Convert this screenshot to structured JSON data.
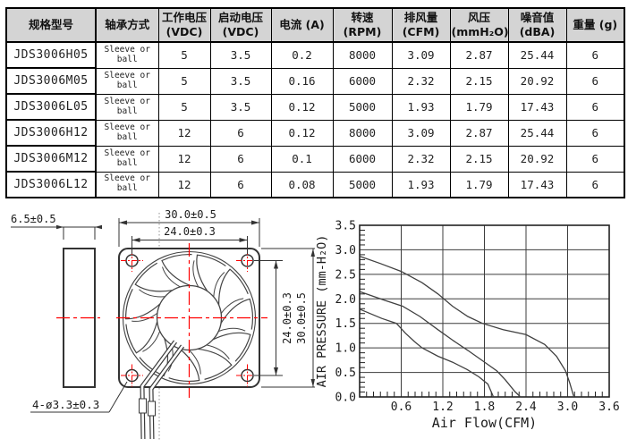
{
  "colors": {
    "accent_red": "#ff0000",
    "line_dark": "#3a3a3a",
    "header_bg": "#d4d4d4",
    "table_border": "#000000",
    "curve": "#404040"
  },
  "spec_table": {
    "headers": [
      "规格型号",
      "轴承方式",
      "工作电压\n(VDC)",
      "启动电压\n(VDC)",
      "电流 (A)",
      "转速(RPM)",
      "排风量\n(CFM)",
      "风压\n(mmH₂O)",
      "噪音值\n(dBA)",
      "重量 (g)"
    ],
    "rows": [
      [
        "JDS3006H05",
        "Sleeve or\nball",
        "5",
        "3.5",
        "0.2",
        "8000",
        "3.09",
        "2.87",
        "25.44",
        "6"
      ],
      [
        "JDS3006M05",
        "Sleeve or\nball",
        "5",
        "3.5",
        "0.16",
        "6000",
        "2.32",
        "2.15",
        "20.92",
        "6"
      ],
      [
        "JDS3006L05",
        "Sleeve or\nball",
        "5",
        "3.5",
        "0.12",
        "5000",
        "1.93",
        "1.79",
        "17.43",
        "6"
      ],
      [
        "JDS3006H12",
        "Sleeve or\nball",
        "12",
        "6",
        "0.12",
        "8000",
        "3.09",
        "2.87",
        "25.44",
        "6"
      ],
      [
        "JDS3006M12",
        "Sleeve or\nball",
        "12",
        "6",
        "0.1",
        "6000",
        "2.32",
        "2.15",
        "20.92",
        "6"
      ],
      [
        "JDS3006L12",
        "Sleeve or\nball",
        "12",
        "6",
        "0.08",
        "5000",
        "1.93",
        "1.79",
        "17.43",
        "6"
      ]
    ]
  },
  "drawing": {
    "labels": {
      "thickness": "6.5±0.5",
      "width_top": "30.0±0.5",
      "hole_pitch_top": "24.0±0.3",
      "hole_pitch_right": "24.0±0.3",
      "height_right": "30.0±0.5",
      "holes": "4-ø3.3±0.3"
    }
  },
  "chart_data": {
    "type": "line",
    "title": "",
    "xlabel": "Air Flow(CFM)",
    "ylabel": "AIR PRESSURE (mm-H₂O)",
    "xlim": [
      0,
      3.6
    ],
    "ylim": [
      0,
      3.5
    ],
    "x_ticks": [
      0.6,
      1.2,
      1.8,
      2.4,
      3.0,
      3.6
    ],
    "y_ticks": [
      0.0,
      0.5,
      1.0,
      1.5,
      2.0,
      2.5,
      3.0,
      3.5
    ],
    "minor_tick_step": 0.1,
    "grid": true,
    "legend": "none",
    "series": [
      {
        "name": "upper-curve",
        "points": [
          [
            0,
            2.87
          ],
          [
            0.3,
            2.72
          ],
          [
            0.6,
            2.56
          ],
          [
            0.9,
            2.33
          ],
          [
            1.13,
            2.1
          ],
          [
            1.34,
            1.85
          ],
          [
            1.56,
            1.64
          ],
          [
            1.77,
            1.5
          ],
          [
            2.07,
            1.37
          ],
          [
            2.4,
            1.27
          ],
          [
            2.67,
            1.07
          ],
          [
            2.84,
            0.83
          ],
          [
            2.97,
            0.53
          ],
          [
            3.03,
            0.29
          ],
          [
            3.09,
            0
          ]
        ]
      },
      {
        "name": "middle-curve",
        "points": [
          [
            0,
            2.15
          ],
          [
            0.36,
            1.97
          ],
          [
            0.62,
            1.85
          ],
          [
            0.87,
            1.64
          ],
          [
            1.13,
            1.37
          ],
          [
            1.34,
            1.16
          ],
          [
            1.56,
            0.95
          ],
          [
            1.77,
            0.74
          ],
          [
            1.98,
            0.53
          ],
          [
            2.1,
            0.35
          ],
          [
            2.24,
            0.11
          ],
          [
            2.32,
            0
          ]
        ]
      },
      {
        "name": "lower-curve",
        "points": [
          [
            0,
            1.79
          ],
          [
            0.32,
            1.6
          ],
          [
            0.53,
            1.5
          ],
          [
            0.66,
            1.3
          ],
          [
            0.79,
            1.13
          ],
          [
            0.9,
            1.0
          ],
          [
            1.13,
            0.83
          ],
          [
            1.34,
            0.71
          ],
          [
            1.55,
            0.56
          ],
          [
            1.72,
            0.41
          ],
          [
            1.85,
            0.26
          ],
          [
            1.93,
            0
          ]
        ]
      }
    ]
  }
}
